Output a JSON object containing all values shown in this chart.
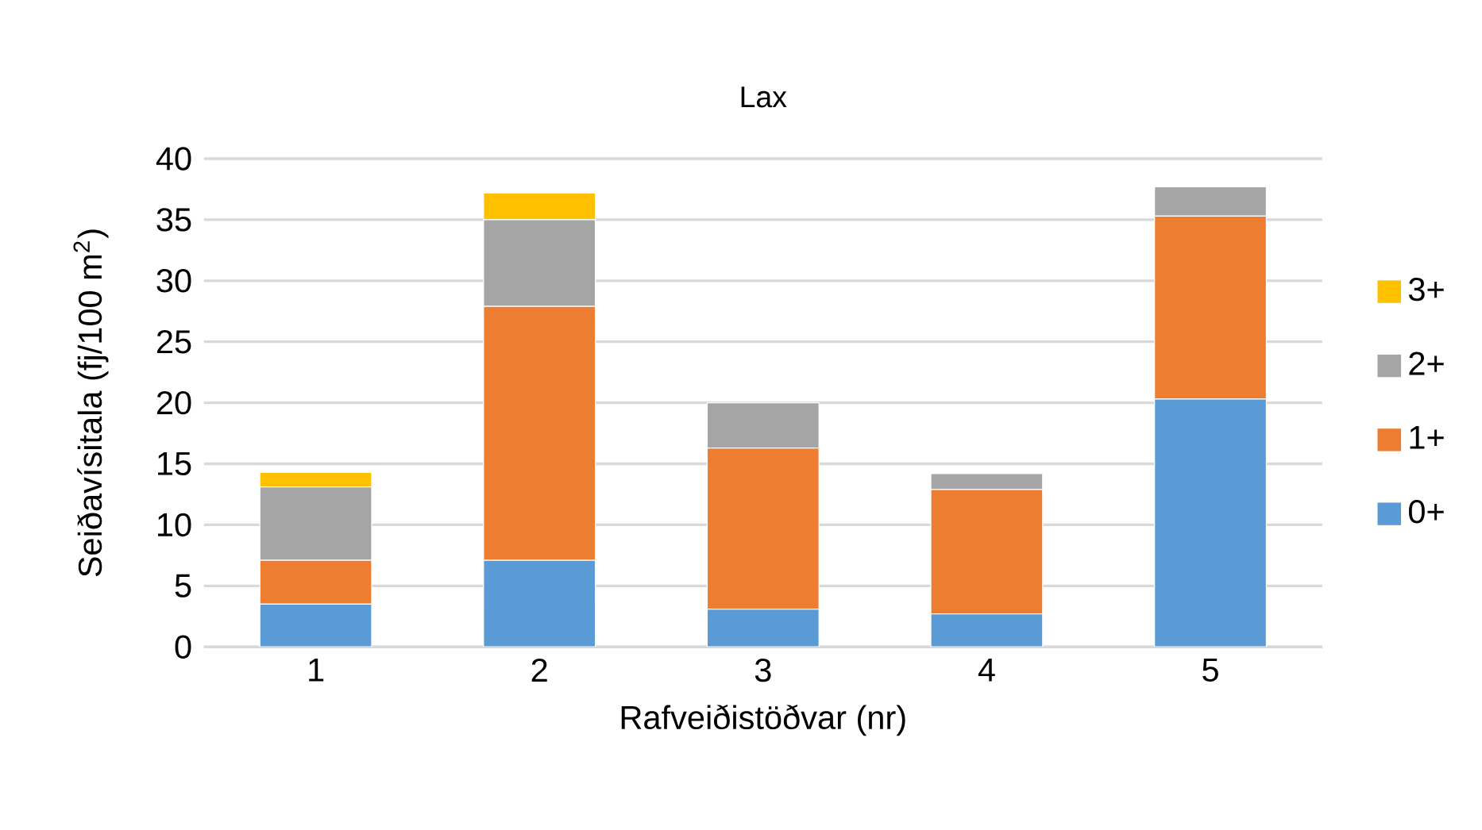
{
  "chart_data": {
    "type": "bar",
    "title": "Lax",
    "xlabel": "Rafveiðistöðvar (nr)",
    "ylabel": "Seiðavísitala (fj/100 m$^{2}$)",
    "categories": [
      "1",
      "2",
      "3",
      "4",
      "5"
    ],
    "stacked": true,
    "ylim": [
      0,
      40
    ],
    "yticks": [
      0,
      5,
      10,
      15,
      20,
      25,
      30,
      35,
      40
    ],
    "grid": "y",
    "legend": "right",
    "series": [
      {
        "name": "0+",
        "color": "#5b9bd5",
        "values": [
          3.5,
          7.1,
          3.1,
          2.7,
          20.3
        ]
      },
      {
        "name": "1+",
        "color": "#ed7d31",
        "values": [
          3.6,
          20.8,
          13.2,
          10.2,
          15.0
        ]
      },
      {
        "name": "2+",
        "color": "#a5a5a5",
        "values": [
          6.0,
          7.1,
          3.7,
          1.3,
          2.4
        ]
      },
      {
        "name": "3+",
        "color": "#ffc000",
        "values": [
          1.2,
          2.2,
          null,
          null,
          null
        ]
      }
    ]
  }
}
